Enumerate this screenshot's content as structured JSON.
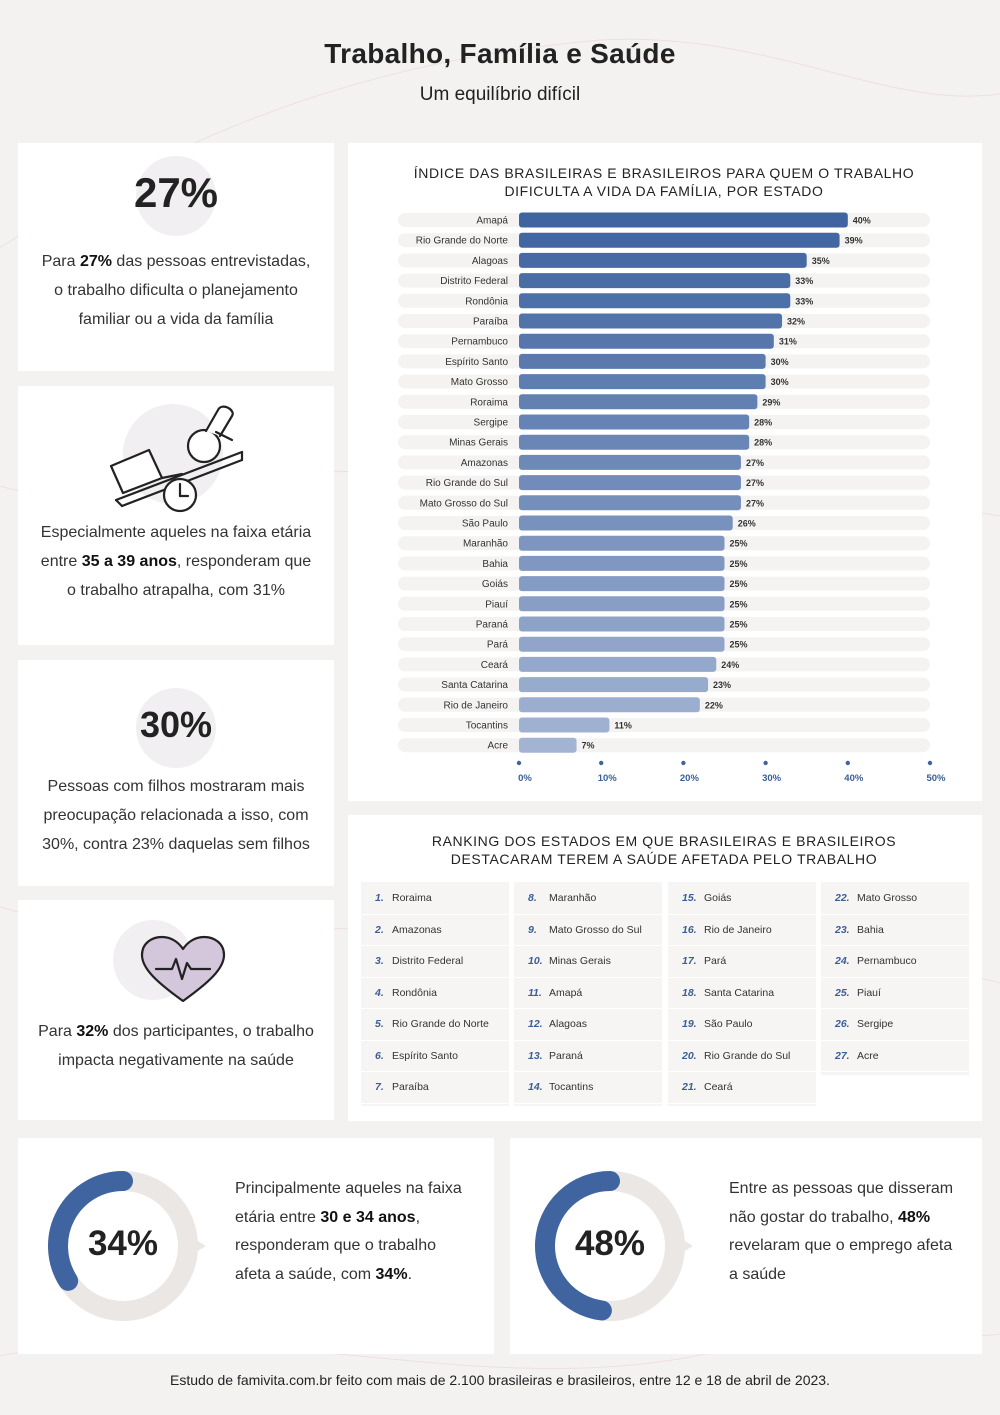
{
  "header": {
    "title": "Trabalho, Família e Saúde",
    "subtitle": "Um equilíbrio difícil"
  },
  "stat1": {
    "big": "27%",
    "pre": "Para ",
    "bold": "27%",
    "post": " das pessoas entrevistadas, o trabalho dificulta o planejamento familiar ou a vida da família"
  },
  "stat2": {
    "pre": "Especialmente aqueles na faixa etária entre ",
    "bold": "35 a 39 anos",
    "post": ", responderam que o trabalho atrapalha, com 31%"
  },
  "stat3": {
    "big": "30%",
    "text": "Pessoas com filhos mostraram mais preocupação relacionada a isso, com 30%, contra 23% daquelas sem filhos"
  },
  "stat4": {
    "pre": "Para ",
    "bold": "32%",
    "post": " dos participantes, o trabalho impacta negativamente na saúde"
  },
  "chart_data": {
    "type": "bar",
    "orientation": "horizontal",
    "title_line1": "ÍNDICE DAS BRASILEIRAS E BRASILEIROS PARA QUEM O TRABALHO",
    "title_line2": "DIFICULTA A VIDA DA FAMÍLIA, POR ESTADO",
    "categories": [
      "Amapá",
      "Rio Grande do Norte",
      "Alagoas",
      "Distrito Federal",
      "Rondônia",
      "Paraíba",
      "Pernambuco",
      "Espírito Santo",
      "Mato Grosso",
      "Roraima",
      "Sergipe",
      "Minas Gerais",
      "Amazonas",
      "Rio Grande do Sul",
      "Mato Grosso do Sul",
      "São Paulo",
      "Maranhão",
      "Bahia",
      "Goiás",
      "Piauí",
      "Paraná",
      "Pará",
      "Ceará",
      "Santa Catarina",
      "Rio de Janeiro",
      "Tocantins",
      "Acre"
    ],
    "values": [
      40,
      39,
      35,
      33,
      33,
      32,
      31,
      30,
      30,
      29,
      28,
      28,
      27,
      27,
      27,
      26,
      25,
      25,
      25,
      25,
      25,
      25,
      24,
      23,
      22,
      11,
      7
    ],
    "value_labels": [
      "40%",
      "39%",
      "35%",
      "33%",
      "33%",
      "32%",
      "31%",
      "30%",
      "30%",
      "29%",
      "28%",
      "28%",
      "27%",
      "27%",
      "27%",
      "26%",
      "25%",
      "25%",
      "25%",
      "25%",
      "25%",
      "25%",
      "24%",
      "23%",
      "22%",
      "11%",
      "7%"
    ],
    "xlim": [
      0,
      50
    ],
    "xticks": [
      "0%",
      "10%",
      "20%",
      "30%",
      "40%",
      "50%"
    ],
    "grid": false,
    "colors": {
      "bar_dark": "#3f64a0",
      "bar_light": "#a3b4d3",
      "track": "#f4f3f2"
    }
  },
  "ranking": {
    "title_line1": "RANKING DOS ESTADOS EM QUE BRASILEIRAS E BRASILEIROS",
    "title_line2": "DESTACARAM TEREM A SAÚDE AFETADA PELO TRABALHO",
    "columns": [
      [
        {
          "n": "1.",
          "s": "Roraima"
        },
        {
          "n": "2.",
          "s": "Amazonas"
        },
        {
          "n": "3.",
          "s": "Distrito Federal"
        },
        {
          "n": "4.",
          "s": "Rondônia"
        },
        {
          "n": "5.",
          "s": "Rio Grande do Norte"
        },
        {
          "n": "6.",
          "s": "Espírito Santo"
        },
        {
          "n": "7.",
          "s": "Paraíba"
        }
      ],
      [
        {
          "n": "8.",
          "s": "Maranhão"
        },
        {
          "n": "9.",
          "s": "Mato Grosso do Sul"
        },
        {
          "n": "10.",
          "s": "Minas Gerais"
        },
        {
          "n": "11.",
          "s": "Amapá"
        },
        {
          "n": "12.",
          "s": "Alagoas"
        },
        {
          "n": "13.",
          "s": "Paraná"
        },
        {
          "n": "14.",
          "s": "Tocantins"
        }
      ],
      [
        {
          "n": "15.",
          "s": "Goiás"
        },
        {
          "n": "16.",
          "s": "Rio de Janeiro"
        },
        {
          "n": "17.",
          "s": "Pará"
        },
        {
          "n": "18.",
          "s": "Santa Catarina"
        },
        {
          "n": "19.",
          "s": "São Paulo"
        },
        {
          "n": "20.",
          "s": "Rio Grande do Sul"
        },
        {
          "n": "21.",
          "s": "Ceará"
        }
      ],
      [
        {
          "n": "22.",
          "s": "Mato Grosso"
        },
        {
          "n": "23.",
          "s": "Bahia"
        },
        {
          "n": "24.",
          "s": "Pernambuco"
        },
        {
          "n": "25.",
          "s": "Piauí"
        },
        {
          "n": "26.",
          "s": "Sergipe"
        },
        {
          "n": "27.",
          "s": "Acre"
        }
      ]
    ]
  },
  "donut1": {
    "label": "34%",
    "value": 0.34,
    "pre": "Principalmente aqueles na faixa etária entre ",
    "bold": "30 e 34 anos",
    "mid": ", responderam que o trabalho afeta a saúde, com ",
    "bold2": "34%",
    "post": "."
  },
  "donut2": {
    "label": "48%",
    "value": 0.48,
    "pre": "Entre as pessoas que disseram não gostar do trabalho, ",
    "bold": "48%",
    "post": " revelaram que o emprego afeta a saúde"
  },
  "colors": {
    "accent": "#3f64a0",
    "donut_track": "#ebe7e4",
    "icon_bg": "#f1eff2",
    "heart_fill": "#d4c6db"
  },
  "footer": "Estudo de famivita.com.br feito com mais de 2.100 brasileiras e brasileiros, entre 12 e 18 de abril de 2023."
}
